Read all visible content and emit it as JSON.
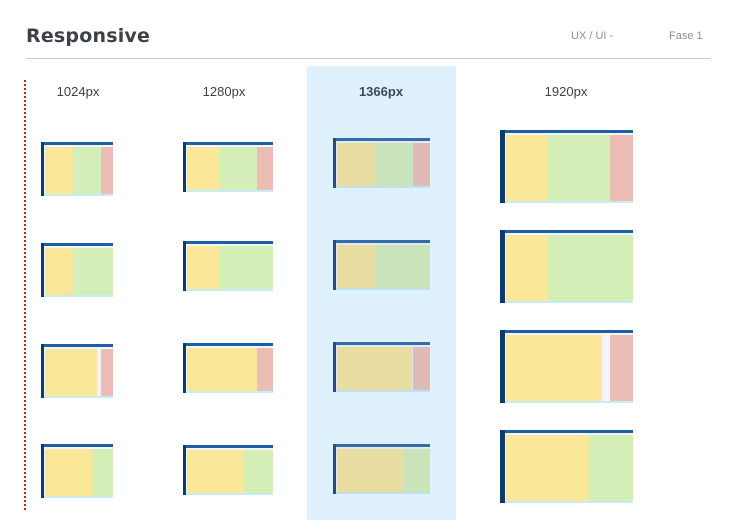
{
  "header": {
    "title": "Responsive",
    "section": "UX / UI -",
    "phase": "Fase 1"
  },
  "breakpoints": [
    {
      "label": "1024px",
      "highlighted": false
    },
    {
      "label": "1280px",
      "highlighted": false
    },
    {
      "label": "1366px",
      "highlighted": true
    },
    {
      "label": "1920px",
      "highlighted": false
    }
  ],
  "layout_rows": [
    {
      "panels": [
        "nav",
        "main",
        "aside"
      ]
    },
    {
      "panels": [
        "nav",
        "main"
      ]
    },
    {
      "panels": [
        "nav",
        "aside"
      ]
    },
    {
      "panels": [
        "nav",
        "main"
      ]
    }
  ],
  "colors": {
    "sidebar": "#0f3a6e",
    "topbar": "#1d5fa6",
    "nav": "#fbe79a",
    "main": "#d4eeb8",
    "aside": "#ecbdb4",
    "highlight": "#def1fd",
    "divider": "#c0271f"
  }
}
